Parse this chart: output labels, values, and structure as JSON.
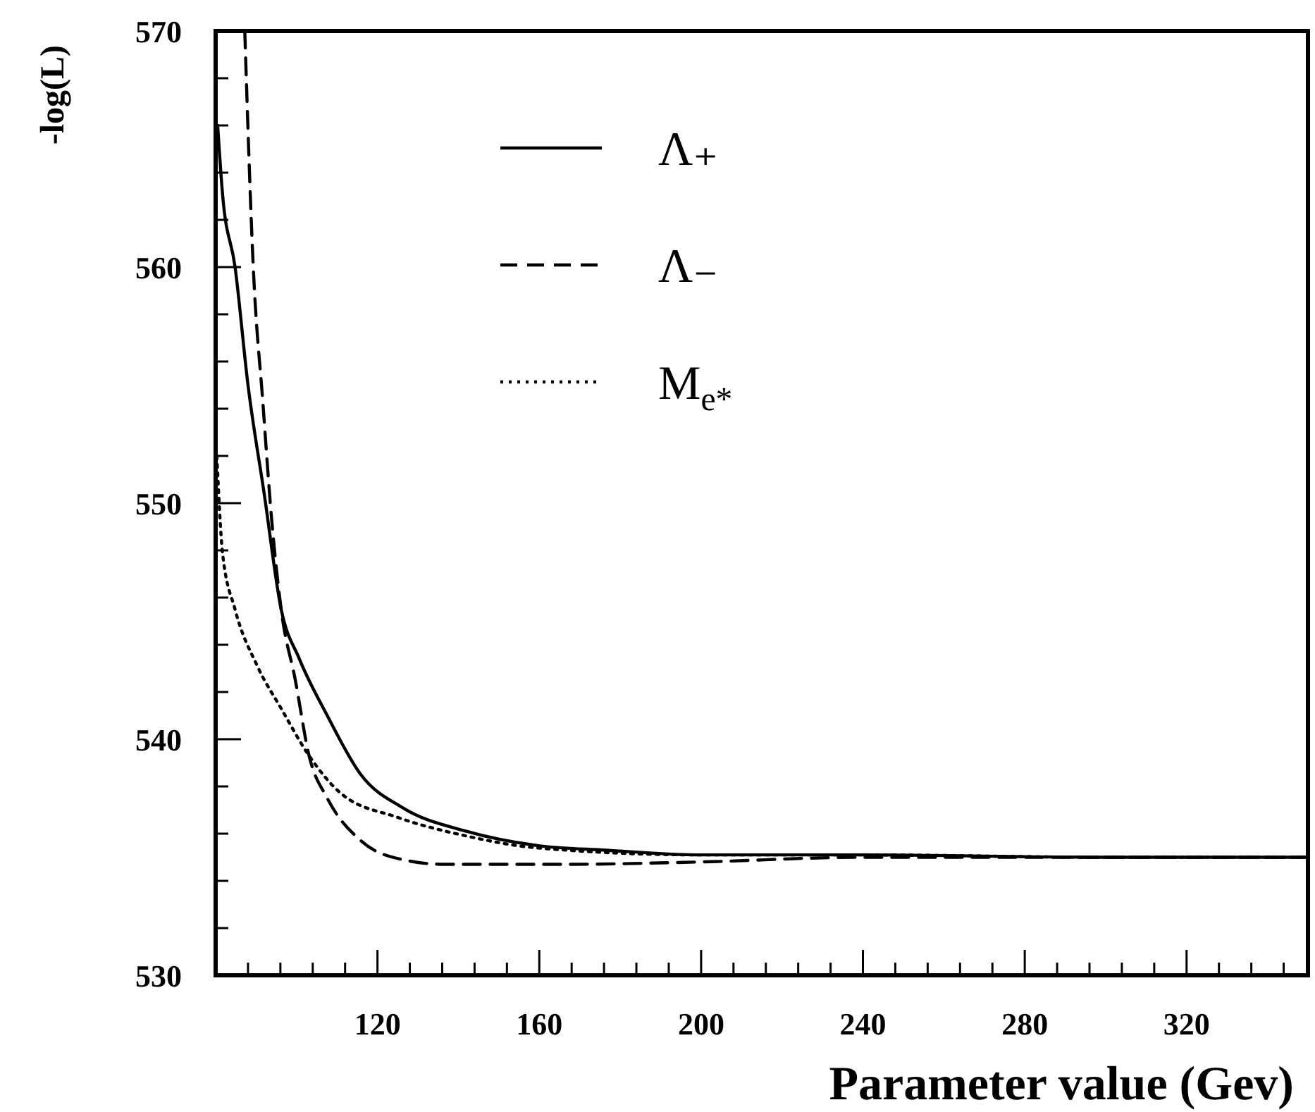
{
  "chart_data": {
    "type": "line",
    "xlabel": "Parameter value (Gev)",
    "ylabel": "-log(L)",
    "xlim": [
      80,
      350
    ],
    "ylim": [
      530,
      570
    ],
    "xticks": [
      {
        "value": 88,
        "label": null
      },
      {
        "value": 96,
        "label": null
      },
      {
        "value": 104,
        "label": null
      },
      {
        "value": 112,
        "label": null
      },
      120,
      {
        "value": 128,
        "label": null
      },
      {
        "value": 136,
        "label": null
      },
      {
        "value": 144,
        "label": null
      },
      {
        "value": 152,
        "label": null
      },
      160,
      {
        "value": 168,
        "label": null
      },
      {
        "value": 176,
        "label": null
      },
      {
        "value": 184,
        "label": null
      },
      {
        "value": 192,
        "label": null
      },
      200,
      {
        "value": 208,
        "label": null
      },
      {
        "value": 216,
        "label": null
      },
      {
        "value": 224,
        "label": null
      },
      {
        "value": 232,
        "label": null
      },
      240,
      {
        "value": 248,
        "label": null
      },
      {
        "value": 256,
        "label": null
      },
      {
        "value": 264,
        "label": null
      },
      {
        "value": 272,
        "label": null
      },
      280,
      {
        "value": 288,
        "label": null
      },
      {
        "value": 296,
        "label": null
      },
      {
        "value": 304,
        "label": null
      },
      {
        "value": 312,
        "label": null
      },
      320,
      {
        "value": 328,
        "label": null
      },
      {
        "value": 336,
        "label": null
      },
      {
        "value": 344,
        "label": null
      }
    ],
    "yticks": [
      530,
      {
        "value": 532,
        "label": null
      },
      {
        "value": 534,
        "label": null
      },
      {
        "value": 536,
        "label": null
      },
      {
        "value": 538,
        "label": null
      },
      540,
      {
        "value": 542,
        "label": null
      },
      {
        "value": 544,
        "label": null
      },
      {
        "value": 546,
        "label": null
      },
      {
        "value": 548,
        "label": null
      },
      550,
      {
        "value": 552,
        "label": null
      },
      {
        "value": 554,
        "label": null
      },
      {
        "value": 556,
        "label": null
      },
      {
        "value": 558,
        "label": null
      },
      560,
      {
        "value": 562,
        "label": null
      },
      {
        "value": 564,
        "label": null
      },
      {
        "value": 566,
        "label": null
      },
      {
        "value": 568,
        "label": null
      },
      570
    ],
    "grid": false,
    "legend": "top",
    "marker": "none",
    "series": [
      {
        "name": "Λ₊",
        "color": "#000000",
        "line_style": "solid",
        "x": [
          80.5,
          81.7,
          84.8,
          88,
          92,
          96.2,
          100.7,
          107.6,
          115.9,
          126.2,
          142,
          159.3,
          176.6,
          200,
          240,
          300,
          350
        ],
        "values": [
          566,
          563.1,
          560,
          555,
          550.4,
          545.5,
          543.4,
          541,
          538.5,
          537.1,
          536.1,
          535.5,
          535.3,
          535.1,
          535.1,
          535,
          535
        ]
      },
      {
        "name": "Λ₋",
        "color": "#000000",
        "line_style": "dashed",
        "x": [
          87.2,
          89.3,
          91.7,
          93.8,
          96.2,
          99.7,
          103.1,
          107.6,
          115.9,
          126.2,
          136.6,
          147.9,
          165.2,
          199.7,
          240,
          300,
          350
        ],
        "values": [
          570,
          560,
          554.2,
          549.4,
          545.5,
          542.5,
          539.3,
          537.5,
          535.7,
          534.9,
          534.7,
          534.7,
          534.7,
          534.8,
          535,
          535,
          535
        ]
      },
      {
        "name": "M$_{e*}$",
        "color": "#000000",
        "line_style": "dotted",
        "x": [
          80.3,
          81.7,
          84.8,
          90.3,
          96.2,
          103.1,
          111,
          124.8,
          142,
          159.3,
          200,
          240,
          300,
          350
        ],
        "values": [
          552,
          547.9,
          545.5,
          543.1,
          541.3,
          539.3,
          537.7,
          536.7,
          535.9,
          535.4,
          535.1,
          535.1,
          535,
          535
        ]
      }
    ]
  }
}
